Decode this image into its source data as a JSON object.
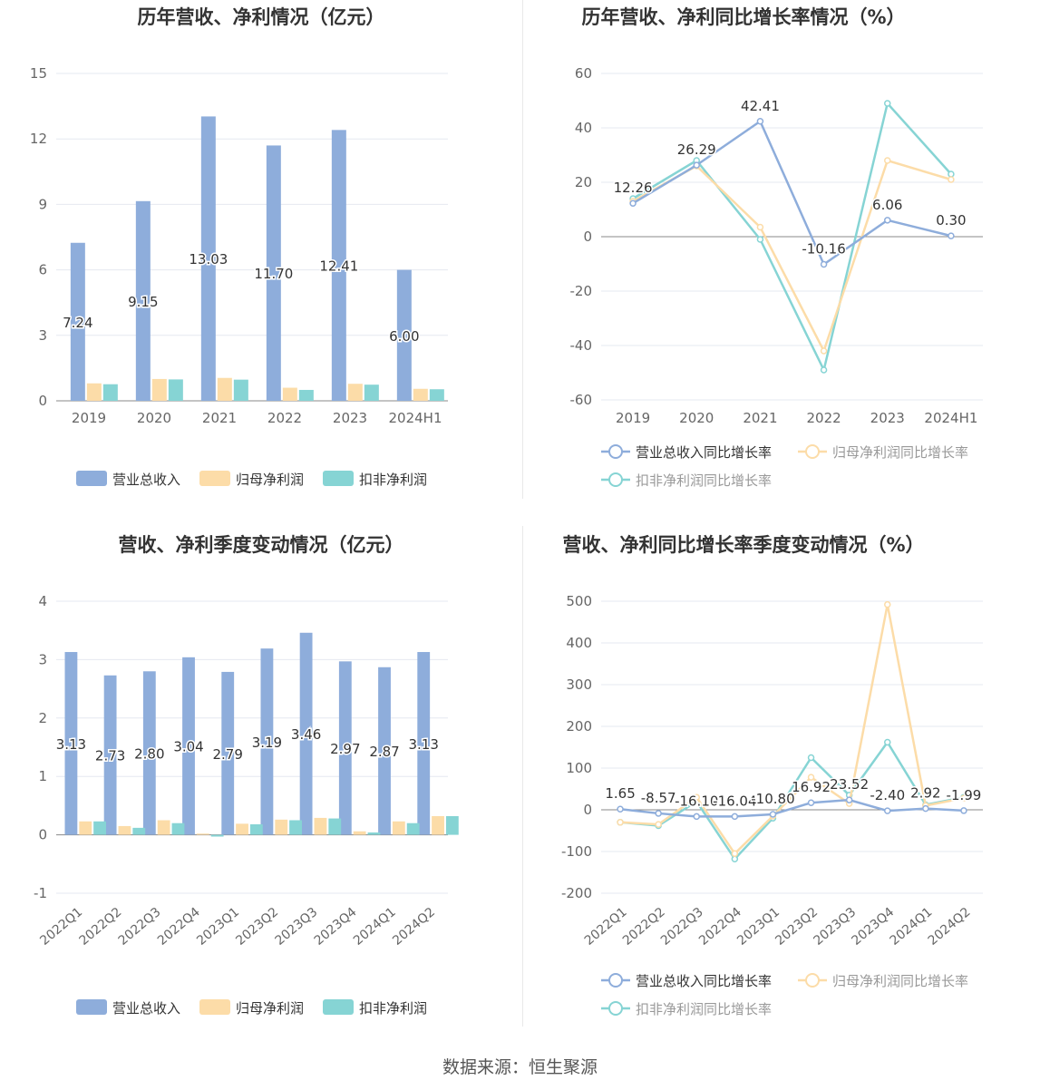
{
  "colors": {
    "revenue": "#8eaddb",
    "net_profit": "#fcdca8",
    "deducted_profit": "#86d4d4",
    "axis_text": "#666666",
    "title": "#333333",
    "grid": "#e6e8f0"
  },
  "source": "数据来源：恒生聚源",
  "chart_data": [
    {
      "type": "bar",
      "title": "历年营收、净利情况（亿元）",
      "categories": [
        "2019",
        "2020",
        "2021",
        "2022",
        "2023",
        "2024H1"
      ],
      "ylim": [
        0,
        15
      ],
      "yticks": [
        0,
        3,
        6,
        9,
        12,
        15
      ],
      "series": [
        {
          "name": "营业总收入",
          "color_key": "revenue",
          "values": [
            7.24,
            9.15,
            13.03,
            11.7,
            12.41,
            6.0
          ],
          "labels": [
            "7.24",
            "9.15",
            "13.03",
            "11.70",
            "12.41",
            "6.00"
          ]
        },
        {
          "name": "归母净利润",
          "color_key": "net_profit",
          "values": [
            0.8,
            1.0,
            1.05,
            0.6,
            0.78,
            0.55
          ]
        },
        {
          "name": "扣非净利润",
          "color_key": "deducted_profit",
          "values": [
            0.76,
            0.98,
            0.97,
            0.5,
            0.74,
            0.53
          ]
        }
      ],
      "legend": "bottom",
      "grid": true
    },
    {
      "type": "line",
      "title": "历年营收、净利同比增长率情况（%）",
      "categories": [
        "2019",
        "2020",
        "2021",
        "2022",
        "2023",
        "2024H1"
      ],
      "ylim": [
        -60,
        60
      ],
      "yticks": [
        -60,
        -40,
        -20,
        0,
        20,
        40,
        60
      ],
      "series": [
        {
          "name": "营业总收入同比增长率",
          "color_key": "revenue",
          "values": [
            12.26,
            26.29,
            42.41,
            -10.16,
            6.06,
            0.3
          ],
          "labels": [
            "12.26",
            "26.29",
            "42.41",
            "-10.16",
            "6.06",
            "0.30"
          ]
        },
        {
          "name": "归母净利润同比增长率",
          "color_key": "net_profit",
          "values": [
            13,
            26,
            3.5,
            -42,
            28,
            21
          ]
        },
        {
          "name": "扣非净利润同比增长率",
          "color_key": "deducted_profit",
          "values": [
            14,
            28,
            -1,
            -49,
            49,
            23
          ]
        }
      ],
      "legend": "bottom",
      "grid": true
    },
    {
      "type": "bar",
      "title": "营收、净利季度变动情况（亿元）",
      "categories": [
        "2022Q1",
        "2022Q2",
        "2022Q3",
        "2022Q4",
        "2023Q1",
        "2023Q2",
        "2023Q3",
        "2023Q4",
        "2024Q1",
        "2024Q2"
      ],
      "ylim": [
        -1,
        4
      ],
      "yticks": [
        -1,
        0,
        1,
        2,
        3,
        4
      ],
      "series": [
        {
          "name": "营业总收入",
          "color_key": "revenue",
          "values": [
            3.13,
            2.73,
            2.8,
            3.04,
            2.79,
            3.19,
            3.46,
            2.97,
            2.87,
            3.13
          ],
          "labels": [
            "3.13",
            "2.73",
            "2.80",
            "3.04",
            "2.79",
            "3.19",
            "3.46",
            "2.97",
            "2.87",
            "3.13"
          ]
        },
        {
          "name": "归母净利润",
          "color_key": "net_profit",
          "values": [
            0.23,
            0.15,
            0.25,
            0.02,
            0.19,
            0.26,
            0.29,
            0.06,
            0.23,
            0.32
          ]
        },
        {
          "name": "扣非净利润",
          "color_key": "deducted_profit",
          "values": [
            0.23,
            0.12,
            0.2,
            -0.03,
            0.18,
            0.25,
            0.28,
            0.04,
            0.2,
            0.32
          ]
        }
      ],
      "legend": "bottom",
      "grid": true
    },
    {
      "type": "line",
      "title": "营收、净利同比增长率季度变动情况（%）",
      "categories": [
        "2022Q1",
        "2022Q2",
        "2022Q3",
        "2022Q4",
        "2023Q1",
        "2023Q2",
        "2023Q3",
        "2023Q4",
        "2024Q1",
        "2024Q2"
      ],
      "ylim": [
        -200,
        500
      ],
      "yticks": [
        -200,
        -100,
        0,
        100,
        200,
        300,
        400,
        500
      ],
      "series": [
        {
          "name": "营业总收入同比增长率",
          "color_key": "revenue",
          "values": [
            1.65,
            -8.57,
            -16.1,
            -16.04,
            -10.8,
            16.92,
            23.52,
            -2.4,
            2.92,
            -1.99
          ],
          "labels": [
            "1.65",
            "-8.57",
            "-16.10",
            "-16.04",
            "-10.80",
            "16.92",
            "23.52",
            "-2.40",
            "2.92",
            "-1.99"
          ]
        },
        {
          "name": "归母净利润同比增长率",
          "color_key": "net_profit",
          "values": [
            -30,
            -35,
            30,
            -105,
            -15,
            78,
            15,
            492,
            10,
            28
          ]
        },
        {
          "name": "扣非净利润同比增长率",
          "color_key": "deducted_profit",
          "values": [
            -30,
            -38,
            20,
            -118,
            -20,
            125,
            35,
            162,
            12,
            30
          ]
        }
      ],
      "legend": "bottom",
      "grid": true
    }
  ]
}
